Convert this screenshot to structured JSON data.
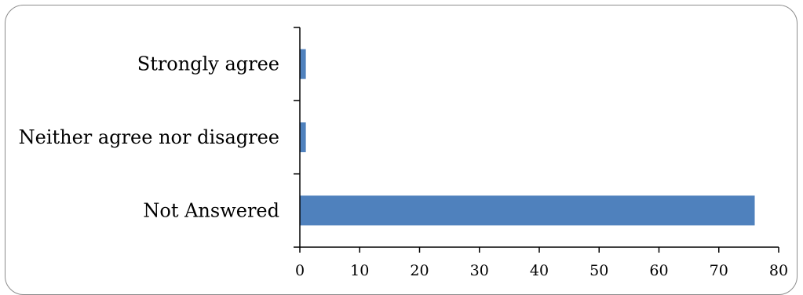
{
  "chart_data": {
    "type": "bar",
    "orientation": "horizontal",
    "categories": [
      "Not Answered",
      "Neither agree nor disagree",
      "Strongly agree"
    ],
    "values": [
      76,
      1,
      1
    ],
    "xlim": [
      0,
      80
    ],
    "xticks": [
      0,
      10,
      20,
      30,
      40,
      50,
      60,
      70,
      80
    ],
    "title": "",
    "xlabel": "",
    "ylabel": "",
    "grid": false,
    "legend": "none",
    "bar_color": "#4f81bd",
    "axis_color": "#000000"
  }
}
